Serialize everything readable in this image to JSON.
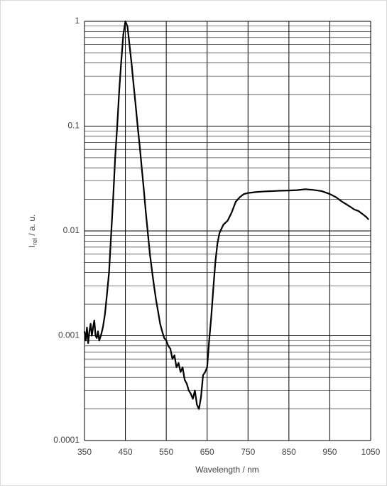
{
  "chart_data": {
    "type": "line",
    "xlabel": "Wavelength  / nm",
    "ylabel_parts": [
      "I",
      "rel",
      " / a. u."
    ],
    "log_y": true,
    "grid": true,
    "minor_grid": true,
    "color": "#000000",
    "xlim": [
      350,
      1050
    ],
    "xticks": [
      350,
      450,
      550,
      650,
      750,
      850,
      950,
      1050
    ],
    "ylim": [
      0.0001,
      1
    ],
    "yticks": [
      1,
      0.1,
      0.01,
      0.001,
      0.0001
    ],
    "x": [
      350,
      353,
      356,
      359,
      362,
      365,
      368,
      371,
      374,
      377,
      380,
      383,
      386,
      390,
      395,
      400,
      405,
      410,
      415,
      420,
      425,
      430,
      435,
      440,
      445,
      450,
      455,
      460,
      465,
      470,
      475,
      480,
      485,
      490,
      495,
      500,
      505,
      510,
      515,
      520,
      525,
      530,
      535,
      540,
      545,
      550,
      555,
      560,
      565,
      570,
      575,
      580,
      585,
      590,
      595,
      600,
      605,
      610,
      615,
      620,
      625,
      630,
      635,
      640,
      645,
      650,
      655,
      660,
      665,
      670,
      675,
      680,
      685,
      690,
      695,
      700,
      710,
      720,
      730,
      740,
      750,
      770,
      790,
      810,
      830,
      850,
      870,
      890,
      910,
      930,
      950,
      965,
      980,
      990,
      1000,
      1010,
      1020,
      1030,
      1040,
      1045
    ],
    "values": [
      0.0011,
      0.0009,
      0.0012,
      0.00085,
      0.0011,
      0.0013,
      0.001,
      0.0012,
      0.0014,
      0.001,
      0.00095,
      0.0011,
      0.0009,
      0.001,
      0.0012,
      0.0016,
      0.0025,
      0.004,
      0.009,
      0.02,
      0.05,
      0.1,
      0.22,
      0.42,
      0.75,
      1.0,
      0.9,
      0.6,
      0.4,
      0.25,
      0.16,
      0.1,
      0.065,
      0.04,
      0.025,
      0.015,
      0.0095,
      0.006,
      0.0042,
      0.003,
      0.0022,
      0.0017,
      0.0013,
      0.0011,
      0.00095,
      0.0009,
      0.0008,
      0.00075,
      0.0006,
      0.00065,
      0.0005,
      0.00055,
      0.00045,
      0.0005,
      0.00038,
      0.00035,
      0.0003,
      0.00028,
      0.00025,
      0.0003,
      0.00022,
      0.0002,
      0.00026,
      0.00042,
      0.00045,
      0.0005,
      0.0009,
      0.0015,
      0.0028,
      0.005,
      0.0075,
      0.0095,
      0.0105,
      0.0115,
      0.012,
      0.0125,
      0.015,
      0.019,
      0.021,
      0.0225,
      0.023,
      0.0235,
      0.0238,
      0.024,
      0.0242,
      0.0243,
      0.0245,
      0.025,
      0.0246,
      0.024,
      0.0225,
      0.021,
      0.019,
      0.018,
      0.017,
      0.016,
      0.0155,
      0.0145,
      0.0135,
      0.0128
    ]
  }
}
